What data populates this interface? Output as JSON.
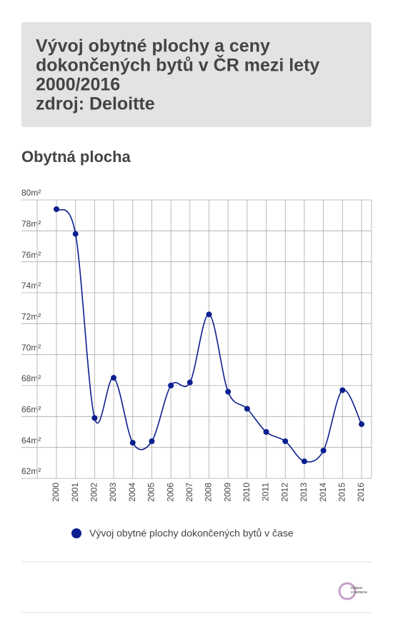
{
  "header": {
    "title_lines": [
      "Vývoj obytné plochy a ceny",
      "dokončených bytů v ČR mezi lety",
      "2000/2016",
      "zdroj: Deloitte"
    ]
  },
  "chart_data": {
    "type": "line",
    "title": "Obytná plocha",
    "categories": [
      "2000",
      "2001",
      "2002",
      "2003",
      "2004",
      "2005",
      "2006",
      "2007",
      "2008",
      "2009",
      "2010",
      "2011",
      "2012",
      "2013",
      "2014",
      "2015",
      "2016"
    ],
    "series": [
      {
        "name": "Vývoj obytné plochy dokončených bytů v čase",
        "color": "#0b1f8f",
        "values": [
          79.4,
          77.8,
          65.9,
          68.5,
          64.3,
          64.4,
          68.0,
          68.2,
          72.6,
          67.6,
          66.5,
          65.0,
          64.4,
          63.1,
          63.8,
          67.7,
          65.5
        ]
      }
    ],
    "ylim": [
      62,
      80
    ],
    "yticks": [
      {
        "value": 62,
        "label": "62m²"
      },
      {
        "value": 64,
        "label": "64m²"
      },
      {
        "value": 66,
        "label": "66m²"
      },
      {
        "value": 68,
        "label": "68m²"
      },
      {
        "value": 70,
        "label": "70m²"
      },
      {
        "value": 72,
        "label": "72m²"
      },
      {
        "value": 74,
        "label": "74m²"
      },
      {
        "value": 76,
        "label": "76m²"
      },
      {
        "value": 78,
        "label": "78m²"
      },
      {
        "value": 80,
        "label": "80m²"
      }
    ],
    "grid": true,
    "legend": "bottom"
  },
  "logo": [
    "ČESKO",
    "V DATECH"
  ]
}
